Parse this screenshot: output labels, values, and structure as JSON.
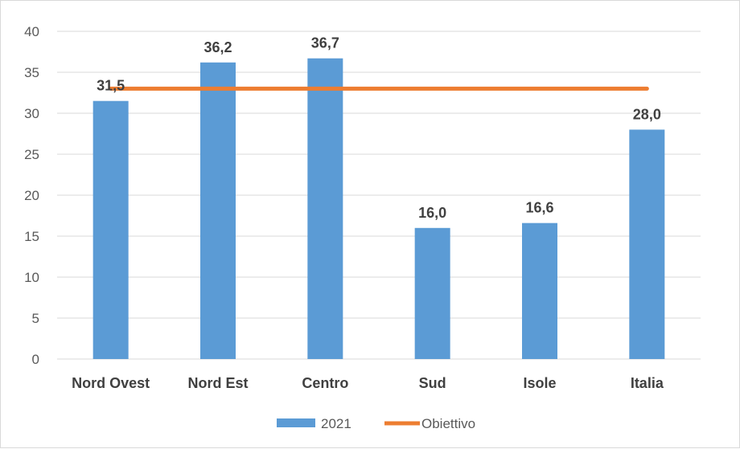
{
  "chart_data": {
    "type": "bar",
    "categories": [
      "Nord Ovest",
      "Nord Est",
      "Centro",
      "Sud",
      "Isole",
      "Italia"
    ],
    "series": [
      {
        "name": "2021",
        "type": "bar",
        "color": "#5b9bd5",
        "values": [
          31.5,
          36.2,
          36.7,
          16.0,
          16.6,
          28.0
        ],
        "labels": [
          "31,5",
          "36,2",
          "36,7",
          "16,0",
          "16,6",
          "28,0"
        ]
      },
      {
        "name": "Obiettivo",
        "type": "line",
        "color": "#ed7d31",
        "value": 33
      }
    ],
    "ylim": [
      0,
      40
    ],
    "yticks": [
      0,
      5,
      10,
      15,
      20,
      25,
      30,
      35,
      40
    ],
    "grid": true,
    "legend_position": "bottom",
    "title": "",
    "xlabel": "",
    "ylabel": ""
  }
}
